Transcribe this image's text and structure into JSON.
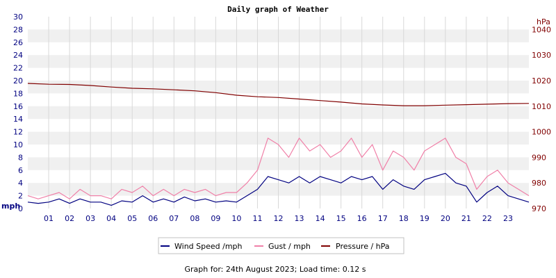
{
  "chart_data": {
    "type": "line",
    "title": "Daily graph of Weather",
    "left_axis": {
      "unit_label": "mph",
      "ylim": [
        0,
        30
      ],
      "ticks": [
        "0",
        "2",
        "4",
        "6",
        "8",
        "10",
        "12",
        "14",
        "16",
        "18",
        "20",
        "22",
        "24",
        "26",
        "28",
        "30"
      ]
    },
    "right_axis": {
      "unit_label": "hPa",
      "ylim": [
        970,
        1045
      ],
      "ticks": [
        "970",
        "980",
        "990",
        "1000",
        "1010",
        "1020",
        "1030",
        "1040"
      ]
    },
    "x_ticks": [
      "01",
      "02",
      "03",
      "04",
      "05",
      "06",
      "07",
      "08",
      "09",
      "10",
      "11",
      "12",
      "13",
      "14",
      "15",
      "16",
      "17",
      "18",
      "19",
      "20",
      "21",
      "22",
      "23"
    ],
    "x_range_hours": [
      0,
      24
    ],
    "grid": true,
    "legend_position": "bottom",
    "series": [
      {
        "name": "Wind Speed /mph",
        "axis": "left",
        "color": "#000080",
        "hours": [
          0,
          0.5,
          1,
          1.5,
          2,
          2.5,
          3,
          3.5,
          4,
          4.5,
          5,
          5.5,
          6,
          6.5,
          7,
          7.5,
          8,
          8.5,
          9,
          9.5,
          10,
          10.5,
          11,
          11.5,
          12,
          12.5,
          13,
          13.5,
          14,
          14.5,
          15,
          15.5,
          16,
          16.5,
          17,
          17.5,
          18,
          18.5,
          19,
          19.5,
          20,
          20.5,
          21,
          21.5,
          22,
          22.5,
          23,
          23.5,
          24
        ],
        "values": [
          1,
          0.8,
          1,
          1.5,
          0.8,
          1.5,
          1,
          1,
          0.5,
          1.2,
          1,
          2,
          1,
          1.5,
          1,
          1.8,
          1.2,
          1.5,
          1,
          1.2,
          1,
          2,
          3,
          5,
          4.5,
          4,
          5,
          4,
          5,
          4.5,
          4,
          5,
          4.5,
          5,
          3,
          4.5,
          3.5,
          3,
          4.5,
          5,
          5.5,
          4,
          3.5,
          1,
          2.5,
          3.5,
          2,
          1.5,
          1
        ]
      },
      {
        "name": "Gust / mph",
        "axis": "left",
        "color": "#f080a8",
        "hours": [
          0,
          0.5,
          1,
          1.5,
          2,
          2.5,
          3,
          3.5,
          4,
          4.5,
          5,
          5.5,
          6,
          6.5,
          7,
          7.5,
          8,
          8.5,
          9,
          9.5,
          10,
          10.5,
          11,
          11.5,
          12,
          12.5,
          13,
          13.5,
          14,
          14.5,
          15,
          15.5,
          16,
          16.5,
          17,
          17.5,
          18,
          18.5,
          19,
          19.5,
          20,
          20.5,
          21,
          21.5,
          22,
          22.5,
          23,
          23.5,
          24
        ],
        "values": [
          2,
          1.5,
          2,
          2.5,
          1.5,
          3,
          2,
          2,
          1.5,
          3,
          2.5,
          3.5,
          2,
          3,
          2,
          3,
          2.5,
          3,
          2,
          2.5,
          2.5,
          4,
          6,
          11,
          10,
          8,
          11,
          9,
          10,
          8,
          9,
          11,
          8,
          10,
          6,
          9,
          8,
          6,
          9,
          10,
          11,
          8,
          7,
          3,
          5,
          6,
          4,
          3,
          2
        ]
      },
      {
        "name": "Pressure / hPa",
        "axis": "right",
        "color": "#800000",
        "hours": [
          0,
          1,
          2,
          3,
          4,
          5,
          6,
          7,
          8,
          9,
          10,
          11,
          12,
          13,
          14,
          15,
          16,
          17,
          18,
          19,
          20,
          21,
          22,
          23,
          24
        ],
        "values": [
          1018.9,
          1018.6,
          1018.5,
          1018.1,
          1017.5,
          1017.0,
          1016.8,
          1016.4,
          1016.0,
          1015.3,
          1014.3,
          1013.7,
          1013.4,
          1012.8,
          1012.2,
          1011.6,
          1010.9,
          1010.5,
          1010.2,
          1010.2,
          1010.4,
          1010.6,
          1010.8,
          1011.0,
          1011.1
        ]
      }
    ]
  },
  "legend": [
    {
      "label": "Wind Speed /mph",
      "color": "#000080"
    },
    {
      "label": "Gust / mph",
      "color": "#f080a8"
    },
    {
      "label": "Pressure / hPa",
      "color": "#800000"
    }
  ],
  "footer": "Graph for: 24th August 2023; Load time: 0.12 s"
}
